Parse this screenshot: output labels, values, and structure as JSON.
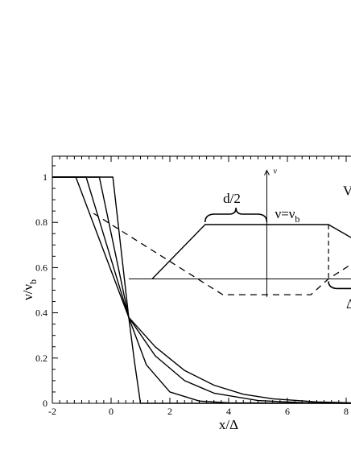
{
  "chart_data": {
    "type": "line",
    "xlabel": "x/Δ",
    "ylabel": "ν/ν",
    "ylabel_sub": "b",
    "xlim": [
      -2,
      8
    ],
    "ylim": [
      0,
      1.1
    ],
    "xticks": [
      "-2",
      "0",
      "2",
      "4",
      "6",
      "8"
    ],
    "yticks": [
      "0",
      "0.2",
      "0.4",
      "0.6",
      "0.8",
      "1"
    ],
    "grid": false,
    "series": [
      {
        "values": [
          [
            -2,
            1
          ],
          [
            0.06,
            1
          ],
          [
            0.6,
            0.38
          ],
          [
            0.8,
            0.18
          ],
          [
            1.0,
            0.0
          ],
          [
            8.5,
            0.0
          ]
        ]
      },
      {
        "values": [
          [
            -2,
            1
          ],
          [
            -0.4,
            1
          ],
          [
            0.6,
            0.38
          ],
          [
            1.2,
            0.17
          ],
          [
            2.0,
            0.05
          ],
          [
            3.0,
            0.01
          ],
          [
            4.0,
            0.002
          ],
          [
            8.5,
            0.0
          ]
        ]
      },
      {
        "values": [
          [
            -2,
            1
          ],
          [
            -0.85,
            1
          ],
          [
            0.6,
            0.38
          ],
          [
            1.5,
            0.21
          ],
          [
            2.5,
            0.1
          ],
          [
            3.5,
            0.045
          ],
          [
            5.0,
            0.012
          ],
          [
            6.5,
            0.003
          ],
          [
            8.5,
            0.0
          ]
        ]
      },
      {
        "values": [
          [
            -2,
            1
          ],
          [
            -1.2,
            1
          ],
          [
            0.6,
            0.38
          ],
          [
            1.5,
            0.25
          ],
          [
            2.5,
            0.145
          ],
          [
            3.5,
            0.08
          ],
          [
            4.5,
            0.04
          ],
          [
            5.5,
            0.02
          ],
          [
            7.0,
            0.006
          ],
          [
            8.5,
            0.002
          ]
        ]
      }
    ],
    "inset": {
      "label_d": "d/2",
      "label_nu_axis": "ν",
      "label_nu": "ν=ν",
      "label_nu_sub": "b",
      "label_right_edge": "V",
      "label_right_bottom": "Δ",
      "solid_trapezoid": [
        [
          1.4,
          0.55
        ],
        [
          3.2,
          0.79
        ],
        [
          7.4,
          0.79
        ],
        [
          8.6,
          0.7
        ]
      ],
      "dashed_trapezoid": [
        [
          -0.6,
          0.84
        ],
        [
          3.8,
          0.48
        ],
        [
          6.8,
          0.48
        ],
        [
          7.4,
          0.55
        ],
        [
          8.6,
          0.65
        ]
      ],
      "dashed_vertical_x": 7.4,
      "baseline_y": 0.55,
      "axis_x": 5.3
    }
  }
}
